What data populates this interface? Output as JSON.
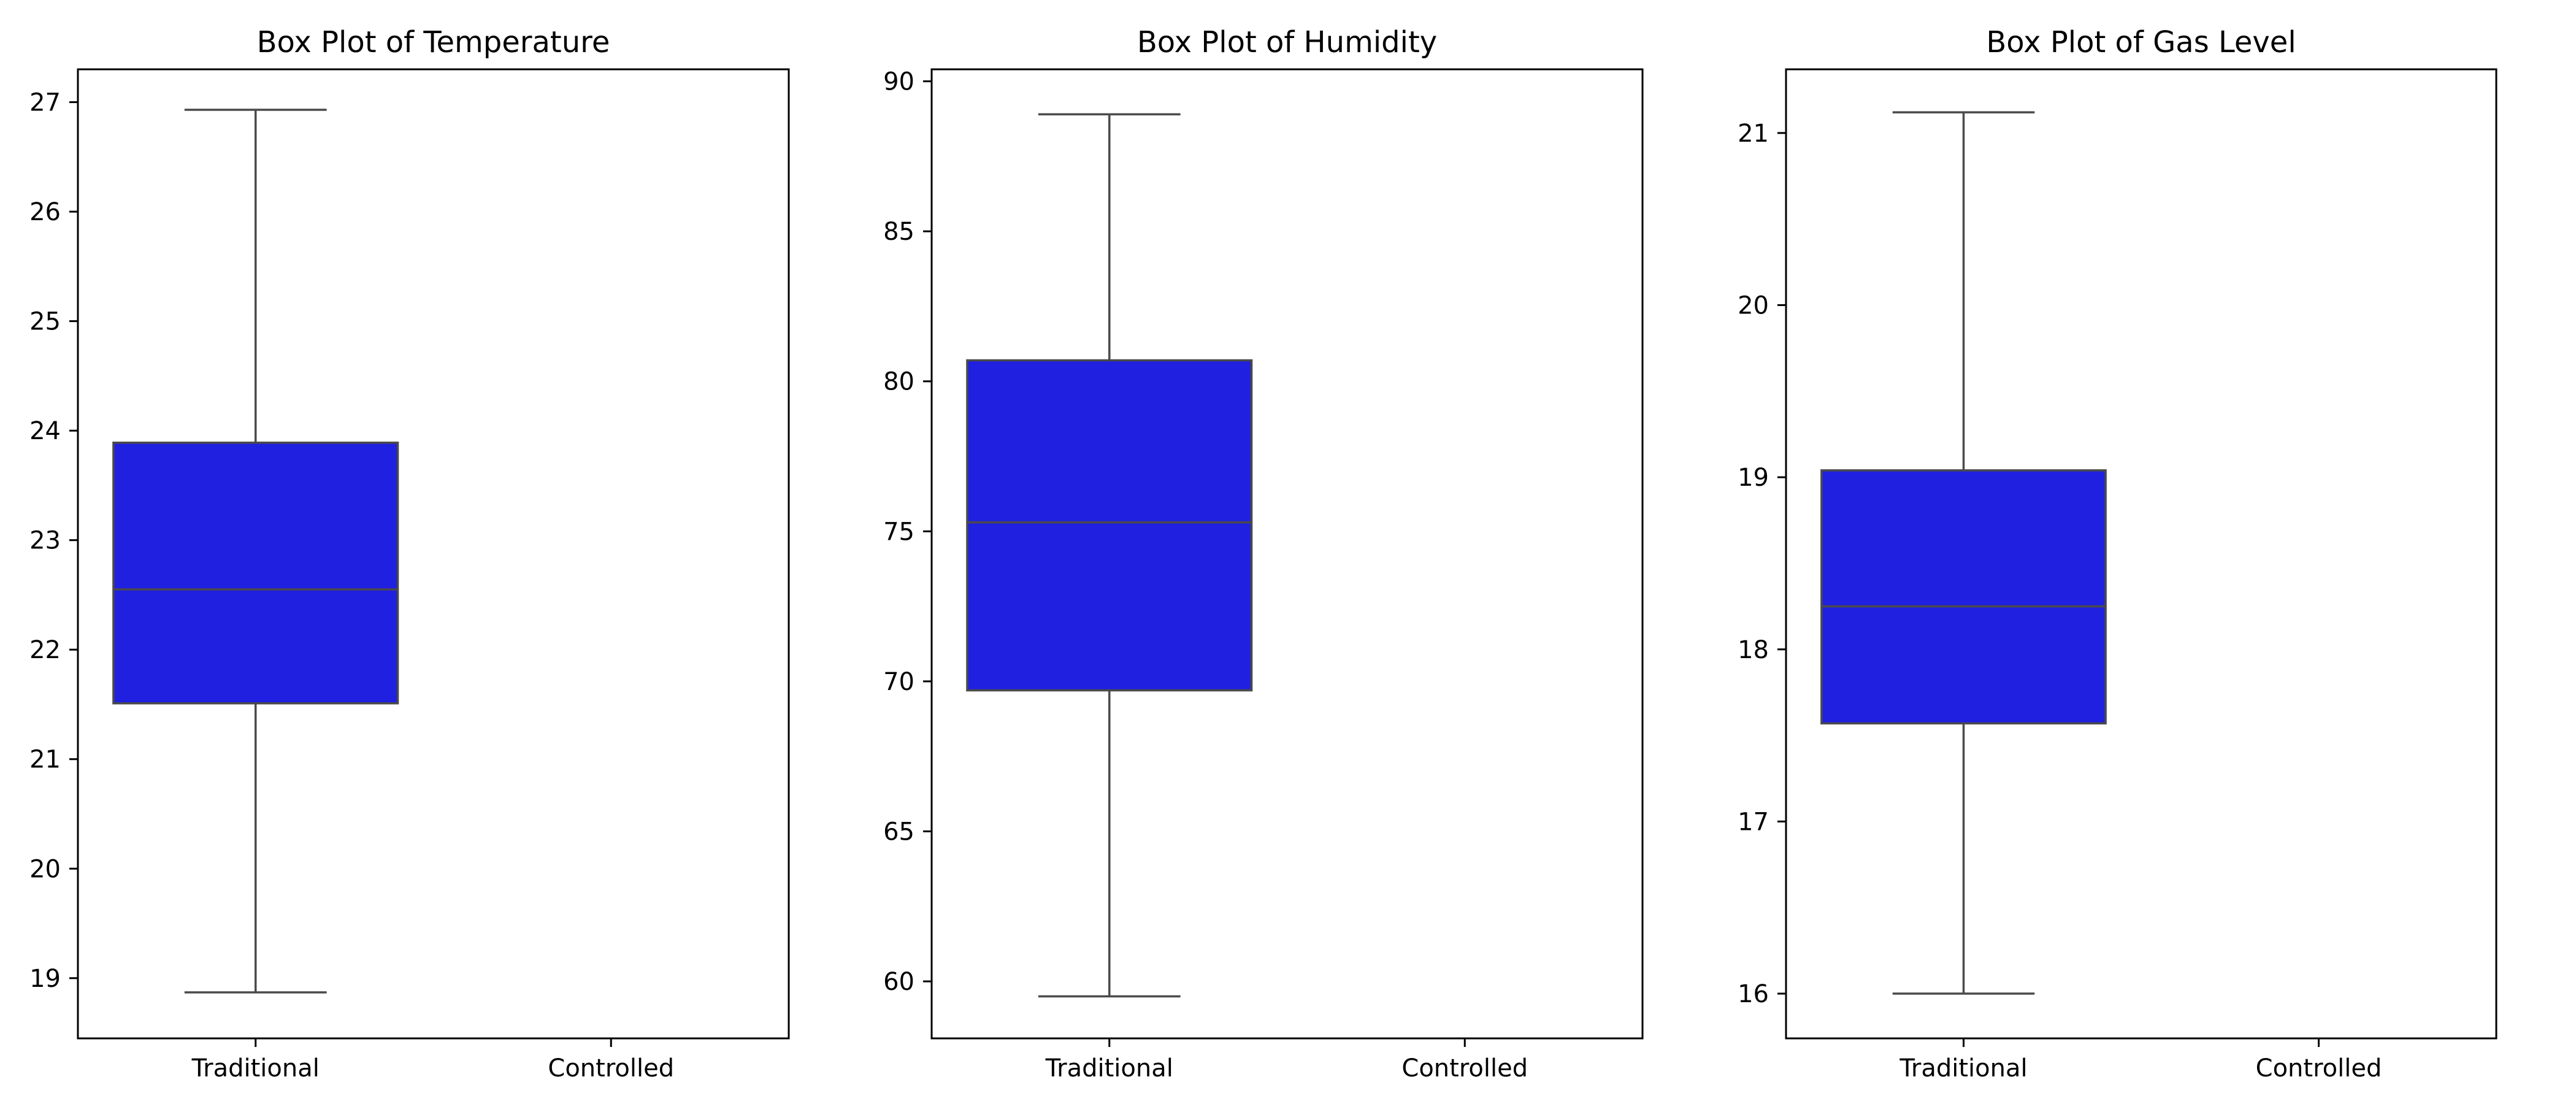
{
  "chart_data": [
    {
      "type": "box",
      "title": "Box Plot of Temperature",
      "categories": [
        "Traditional",
        "Controlled"
      ],
      "ylim": [
        18.45,
        27.3
      ],
      "yticks": [
        19,
        20,
        21,
        22,
        23,
        24,
        25,
        26,
        27
      ],
      "grid": false,
      "boxes": [
        {
          "category": "Traditional",
          "whisker_low": 18.87,
          "q1": 21.51,
          "median": 22.55,
          "q3": 23.89,
          "whisker_high": 26.93
        }
      ],
      "colors": {
        "box_fill": "#2020e0",
        "box_edge": "#4a4a4a",
        "axis": "#000000"
      }
    },
    {
      "type": "box",
      "title": "Box Plot of Humidity",
      "categories": [
        "Traditional",
        "Controlled"
      ],
      "ylim": [
        58.1,
        90.4
      ],
      "yticks": [
        60,
        65,
        70,
        75,
        80,
        85,
        90
      ],
      "grid": false,
      "boxes": [
        {
          "category": "Traditional",
          "whisker_low": 59.5,
          "q1": 69.7,
          "median": 75.3,
          "q3": 80.7,
          "whisker_high": 88.9
        }
      ],
      "colors": {
        "box_fill": "#2020e0",
        "box_edge": "#4a4a4a",
        "axis": "#000000"
      }
    },
    {
      "type": "box",
      "title": "Box Plot of Gas Level",
      "categories": [
        "Traditional",
        "Controlled"
      ],
      "ylim": [
        15.74,
        21.37
      ],
      "yticks": [
        16,
        17,
        18,
        19,
        20,
        21
      ],
      "grid": false,
      "boxes": [
        {
          "category": "Traditional",
          "whisker_low": 16.0,
          "q1": 17.57,
          "median": 18.25,
          "q3": 19.04,
          "whisker_high": 21.12
        }
      ],
      "colors": {
        "box_fill": "#2020e0",
        "box_edge": "#4a4a4a",
        "axis": "#000000"
      }
    }
  ]
}
